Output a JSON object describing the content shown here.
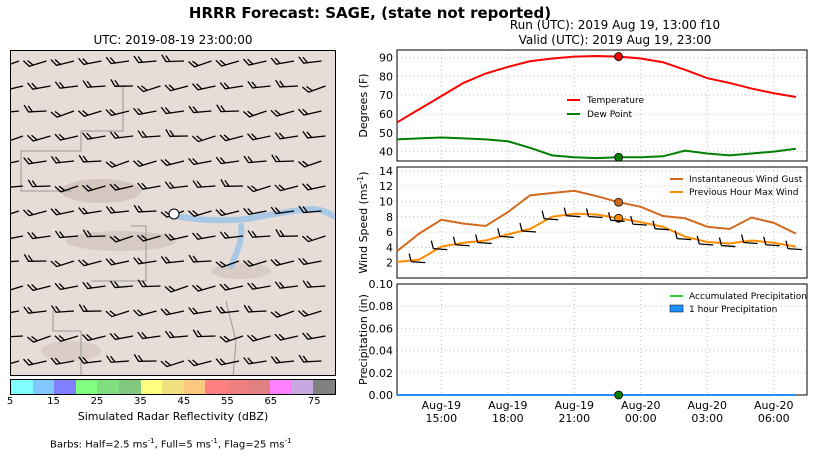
{
  "title": "HRRR Forecast: SAGE, (state not reported)",
  "map": {
    "title": "UTC: 2019-08-19 23:00:00",
    "colorbar_label": "Simulated Radar Reflectivity (dBZ)",
    "colorbar_ticks": [
      "5",
      "15",
      "25",
      "35",
      "45",
      "55",
      "65",
      "75"
    ],
    "colorbar_colors": [
      "#7fffff",
      "#80c8ff",
      "#8080ff",
      "#80ff80",
      "#80e080",
      "#80c880",
      "#ffff80",
      "#f0e080",
      "#ffc880",
      "#ff8080",
      "#f08080",
      "#e08080",
      "#ff80ff",
      "#c8a8e0",
      "#808080"
    ],
    "barb_note_prefix": "Barbs: Half=2.5 ms",
    "barb_note_mid1": ", Full=5 ms",
    "barb_note_mid2": ", Flag=25 ms",
    "barb_note_sup": "-1"
  },
  "run_line": "Run (UTC): 2019 Aug 19, 13:00 f10",
  "valid_line": "Valid (UTC): 2019 Aug 19, 23:00",
  "x_ticks": [
    {
      "hour": 15,
      "line1": "Aug-19",
      "line2": "15:00"
    },
    {
      "hour": 18,
      "line1": "Aug-19",
      "line2": "18:00"
    },
    {
      "hour": 21,
      "line1": "Aug-19",
      "line2": "21:00"
    },
    {
      "hour": 24,
      "line1": "Aug-20",
      "line2": "00:00"
    },
    {
      "hour": 27,
      "line1": "Aug-20",
      "line2": "03:00"
    },
    {
      "hour": 30,
      "line1": "Aug-20",
      "line2": "06:00"
    }
  ],
  "chart_data": [
    {
      "type": "line",
      "ylabel": "Degrees (F)",
      "xlim": [
        13,
        31.5
      ],
      "ylim": [
        35,
        94
      ],
      "yticks": [
        40,
        50,
        60,
        70,
        80,
        90
      ],
      "grid": true,
      "legend_position": "center",
      "x": [
        13,
        14,
        15,
        16,
        17,
        18,
        19,
        20,
        21,
        22,
        23,
        24,
        25,
        26,
        27,
        28,
        29,
        30,
        31
      ],
      "series": [
        {
          "name": "Temperature",
          "color": "#ff0000",
          "values": [
            55.5,
            62.5,
            69.5,
            76.5,
            81.5,
            85,
            88,
            89.5,
            90.5,
            90.8,
            90.5,
            89.5,
            87.5,
            83.5,
            79,
            76.5,
            73.5,
            71,
            69
          ]
        },
        {
          "name": "Dew Point",
          "color": "#008000",
          "values": [
            46.5,
            47,
            47.5,
            47,
            46.5,
            45.5,
            42,
            38,
            37,
            36.5,
            37,
            37,
            37.5,
            40.5,
            39,
            38,
            39,
            40,
            41.5
          ]
        }
      ],
      "marker_x": 23,
      "markers": [
        {
          "value": 90.5,
          "color": "#ff0000"
        },
        {
          "value": 37,
          "color": "#008000"
        }
      ]
    },
    {
      "type": "line",
      "ylabel": "Wind Speed (ms",
      "ylabel_sup": "-1",
      "ylabel_suffix": ")",
      "xlim": [
        13,
        31.5
      ],
      "ylim": [
        0,
        14.5
      ],
      "yticks": [
        2,
        4,
        6,
        8,
        10,
        12,
        14
      ],
      "grid": true,
      "legend_position": "top-right",
      "x": [
        13,
        14,
        15,
        16,
        17,
        18,
        19,
        20,
        21,
        22,
        23,
        24,
        25,
        26,
        27,
        28,
        29,
        30,
        31
      ],
      "series": [
        {
          "name": "Instantaneous Wind Gust",
          "color": "#d2691e",
          "values": [
            3.5,
            5.8,
            7.6,
            7.1,
            6.8,
            8.6,
            10.8,
            11.1,
            11.4,
            10.7,
            9.9,
            9.3,
            8.1,
            7.8,
            6.7,
            6.4,
            7.9,
            7.2,
            5.8
          ]
        },
        {
          "name": "Previous Hour Max Wind",
          "color": "#ff8c00",
          "values": [
            2.1,
            2.4,
            4.1,
            4.6,
            4.9,
            5.7,
            6.4,
            8.0,
            8.4,
            8.3,
            7.8,
            7.3,
            6.7,
            5.4,
            4.7,
            4.5,
            4.9,
            4.6,
            4.1
          ]
        }
      ],
      "marker_x": 23,
      "markers": [
        {
          "value": 9.9,
          "color": "#d2691e"
        },
        {
          "value": 7.8,
          "color": "#ff8c00"
        }
      ]
    },
    {
      "type": "bar",
      "ylabel": "Precipitation (in)",
      "xlim": [
        13,
        31.5
      ],
      "ylim": [
        0,
        0.1
      ],
      "yticks": [
        "0.00",
        "0.02",
        "0.04",
        "0.06",
        "0.08",
        "0.10"
      ],
      "grid": true,
      "legend_position": "top-right",
      "x": [
        13,
        14,
        15,
        16,
        17,
        18,
        19,
        20,
        21,
        22,
        23,
        24,
        25,
        26,
        27,
        28,
        29,
        30,
        31
      ],
      "series": [
        {
          "name": "Accumulated Precipitation",
          "color": "#32cd32",
          "values": [
            0,
            0,
            0,
            0,
            0,
            0,
            0,
            0,
            0,
            0,
            0,
            0,
            0,
            0,
            0,
            0,
            0,
            0,
            0
          ]
        },
        {
          "name": "1 hour Precipitation",
          "color": "#1e90ff",
          "values": [
            0,
            0,
            0,
            0,
            0,
            0,
            0,
            0,
            0,
            0,
            0,
            0,
            0,
            0,
            0,
            0,
            0,
            0,
            0
          ]
        }
      ],
      "marker_x": 23,
      "markers": [
        {
          "value": 0,
          "color": "#008000"
        }
      ]
    }
  ]
}
